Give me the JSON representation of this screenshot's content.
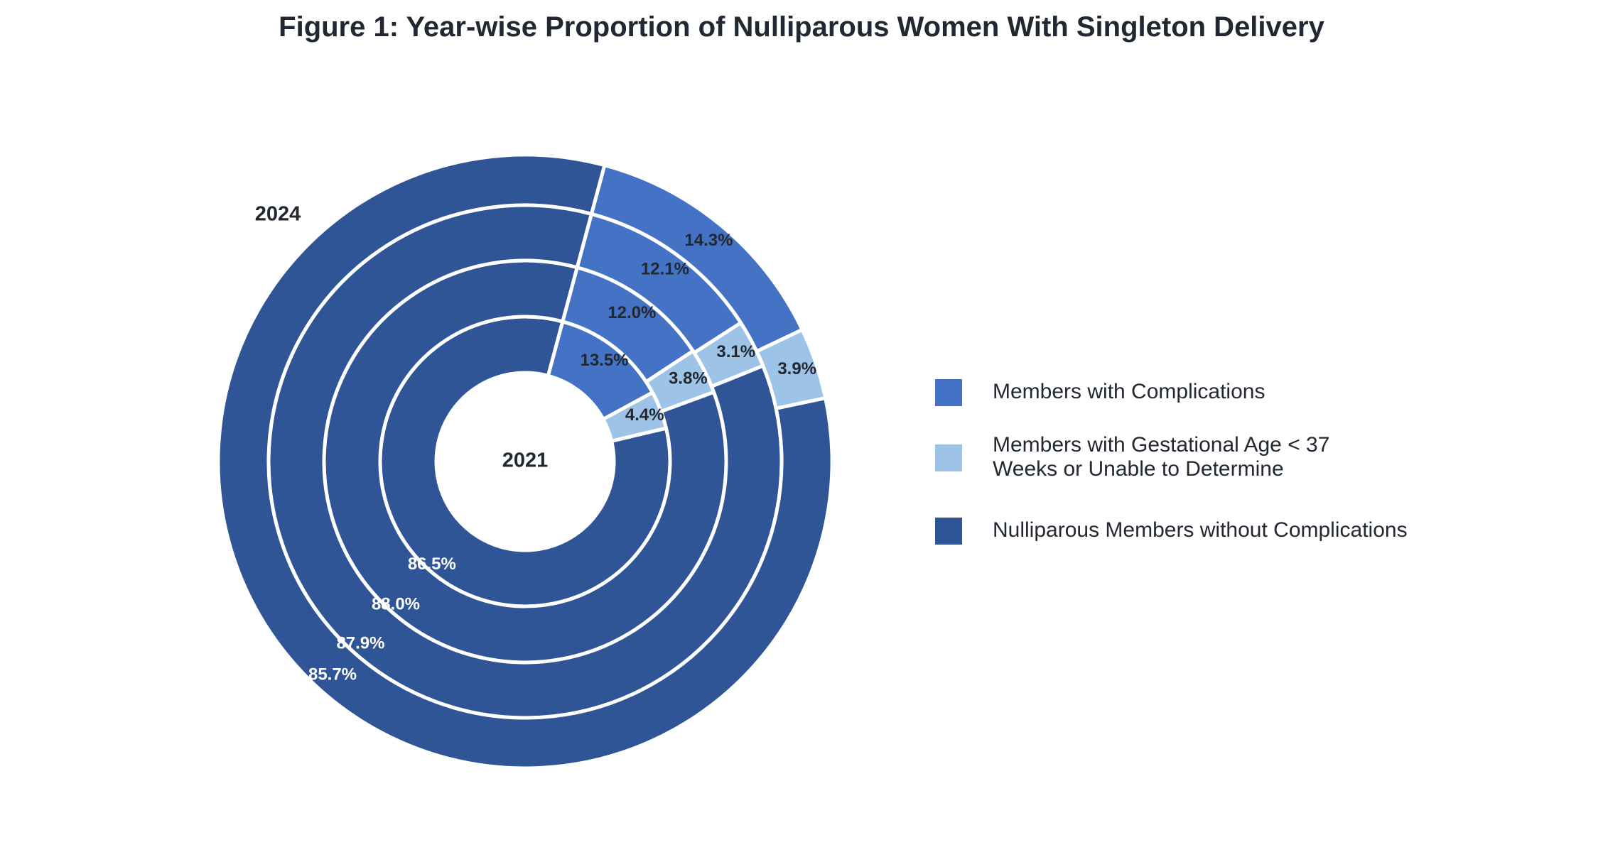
{
  "chart_data": {
    "type": "pie",
    "subtype": "nested-donut",
    "title": "Figure 1: Year-wise Proportion of Nulliparous Women With Singleton Delivery",
    "ring_labels": {
      "inner": "2021",
      "outer": "2024"
    },
    "categories": [
      "Members with Complications",
      "Members with Gestational Age < 37 Weeks or Unable to Determine",
      "Nulliparous Members without Complications"
    ],
    "legend": {
      "placement": "right",
      "entries": [
        {
          "lines": [
            "Members with Complications"
          ],
          "color": "#4472C4"
        },
        {
          "lines": [
            "Members with Gestational Age < 37",
            "Weeks or Unable to Determine"
          ],
          "color": "#9DC3E6"
        },
        {
          "lines": [
            "Nulliparous Members without Complications"
          ],
          "color": "#2F5597"
        }
      ]
    },
    "rings": [
      {
        "values": [
          13.5,
          4.4,
          86.5
        ],
        "labels": [
          "13.5%",
          "4.4%",
          "86.5%"
        ]
      },
      {
        "values": [
          12.0,
          3.8,
          88.0
        ],
        "labels": [
          "12.0%",
          "3.8%",
          "88.0%"
        ]
      },
      {
        "values": [
          12.1,
          3.1,
          87.9
        ],
        "labels": [
          "12.1%",
          "3.1%",
          "87.9%"
        ]
      },
      {
        "values": [
          14.3,
          3.9,
          85.7
        ],
        "labels": [
          "14.3%",
          "3.9%",
          "85.7%"
        ]
      }
    ],
    "colors": [
      "#4472C4",
      "#9DC3E6",
      "#2F5597"
    ],
    "label_colors": [
      "#222831",
      "#222831",
      "#ffffff"
    ]
  }
}
